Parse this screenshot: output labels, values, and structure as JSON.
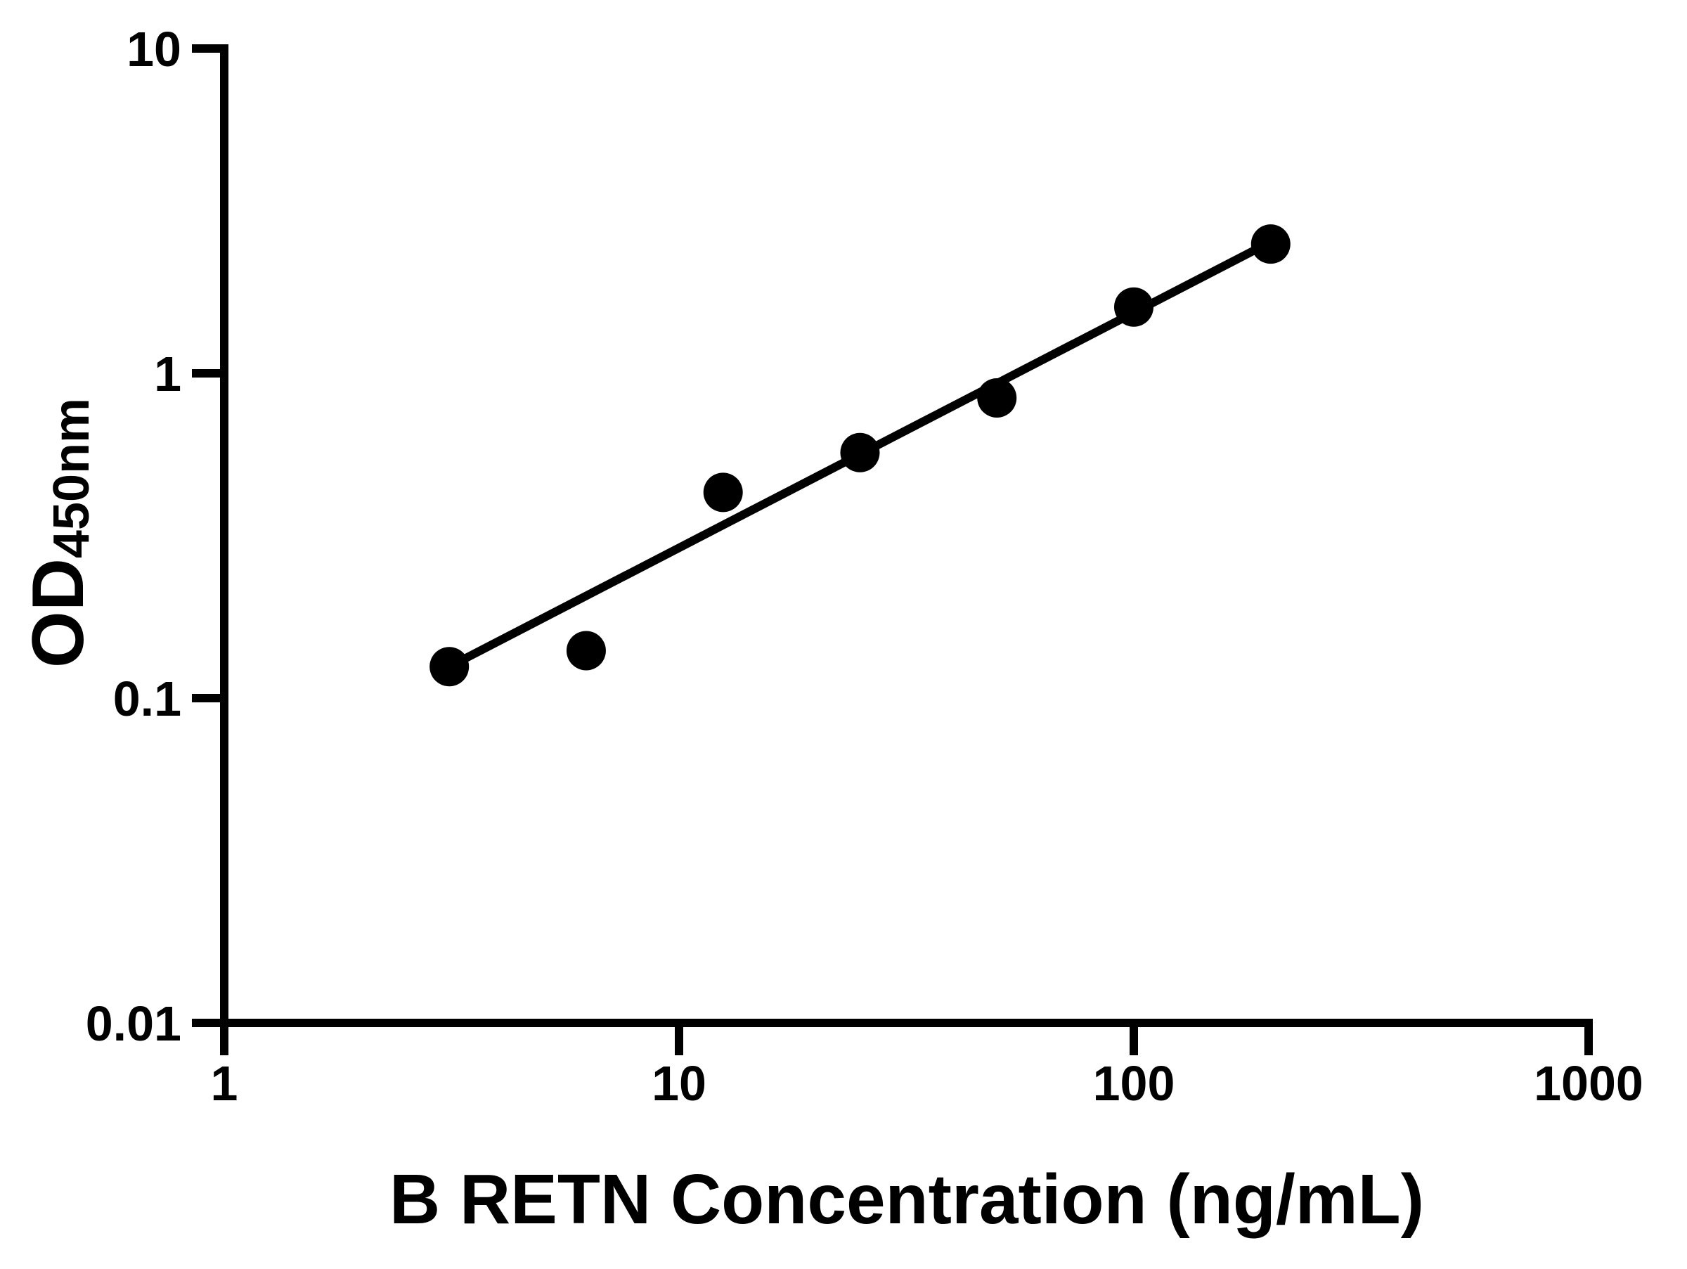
{
  "figure": {
    "background_color": "#ffffff",
    "foreground_color": "#000000"
  },
  "chart_data": {
    "type": "scatter",
    "title": "",
    "xlabel": "B RETN Concentration (ng/mL)",
    "ylabel": "OD",
    "ylabel_subscript": "450nm",
    "x_scale": "log",
    "y_scale": "log",
    "xlim": [
      1,
      1000
    ],
    "ylim": [
      0.01,
      10
    ],
    "x_ticks": [
      1,
      10,
      100,
      1000
    ],
    "x_tick_labels": [
      "1",
      "10",
      "100",
      "1000"
    ],
    "y_ticks": [
      0.01,
      0.1,
      1,
      10
    ],
    "y_tick_labels": [
      "0.01",
      "0.1",
      "1",
      "10"
    ],
    "grid": false,
    "legend": "none",
    "series": [
      {
        "name": "standard-curve-points",
        "marker": "circle",
        "color": "#000000",
        "points": [
          {
            "x": 3.125,
            "y": 0.125
          },
          {
            "x": 6.25,
            "y": 0.14
          },
          {
            "x": 12.5,
            "y": 0.43
          },
          {
            "x": 25,
            "y": 0.57
          },
          {
            "x": 50,
            "y": 0.84
          },
          {
            "x": 100,
            "y": 1.6
          },
          {
            "x": 200,
            "y": 2.5
          }
        ]
      }
    ],
    "fit_line": {
      "color": "#000000",
      "x1": 3.37,
      "y1": 0.132,
      "x2": 200,
      "y2": 2.54
    }
  }
}
